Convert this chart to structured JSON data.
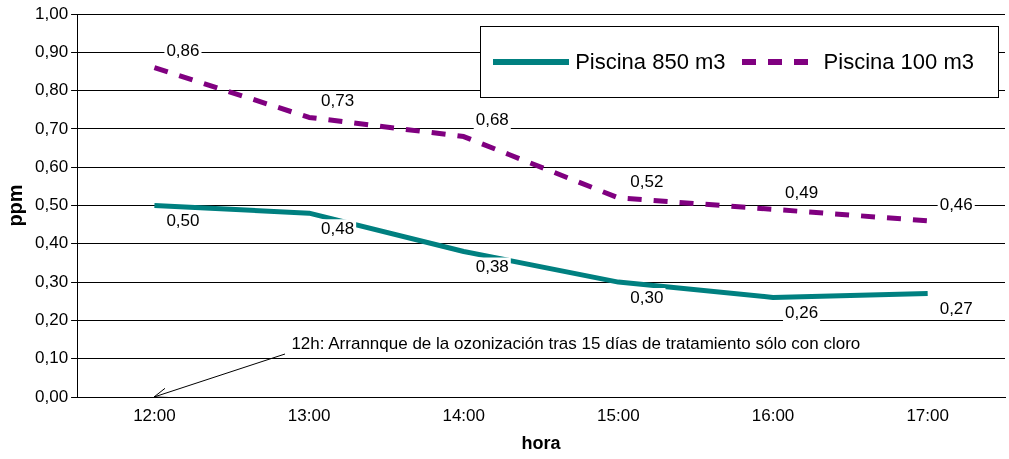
{
  "chart_data": {
    "type": "line",
    "xlabel": "hora",
    "ylabel": "ppm",
    "categories": [
      "12:00",
      "13:00",
      "14:00",
      "15:00",
      "16:00",
      "17:00"
    ],
    "series": [
      {
        "name": "Piscina 850 m3",
        "color": "#008080",
        "line_style": "solid",
        "values": [
          0.5,
          0.48,
          0.38,
          0.3,
          0.26,
          0.27
        ],
        "value_labels": [
          "0,50",
          "0,48",
          "0,38",
          "0,30",
          "0,26",
          "0,27"
        ]
      },
      {
        "name": "Piscina 100 m3",
        "color": "#800080",
        "line_style": "dashed",
        "values": [
          0.86,
          0.73,
          0.68,
          0.52,
          0.49,
          0.46
        ],
        "value_labels": [
          "0,86",
          "0,73",
          "0,68",
          "0,52",
          "0,49",
          "0,46"
        ]
      }
    ],
    "ylim": [
      0,
      1
    ],
    "yticks": [
      {
        "value": 0,
        "label": "0,00"
      },
      {
        "value": 0.1,
        "label": "0,10"
      },
      {
        "value": 0.2,
        "label": "0,20"
      },
      {
        "value": 0.3,
        "label": "0,30"
      },
      {
        "value": 0.4,
        "label": "0,40"
      },
      {
        "value": 0.5,
        "label": "0,50"
      },
      {
        "value": 0.6,
        "label": "0,60"
      },
      {
        "value": 0.7,
        "label": "0,70"
      },
      {
        "value": 0.8,
        "label": "0,80"
      },
      {
        "value": 0.9,
        "label": "0,90"
      },
      {
        "value": 1,
        "label": "1,00"
      }
    ],
    "grid": "y",
    "legend": "top right",
    "marker": "none",
    "annotations": [
      "12h: Arrannque de la ozonización tras 15 días de tratamiento sólo con cloro"
    ]
  }
}
